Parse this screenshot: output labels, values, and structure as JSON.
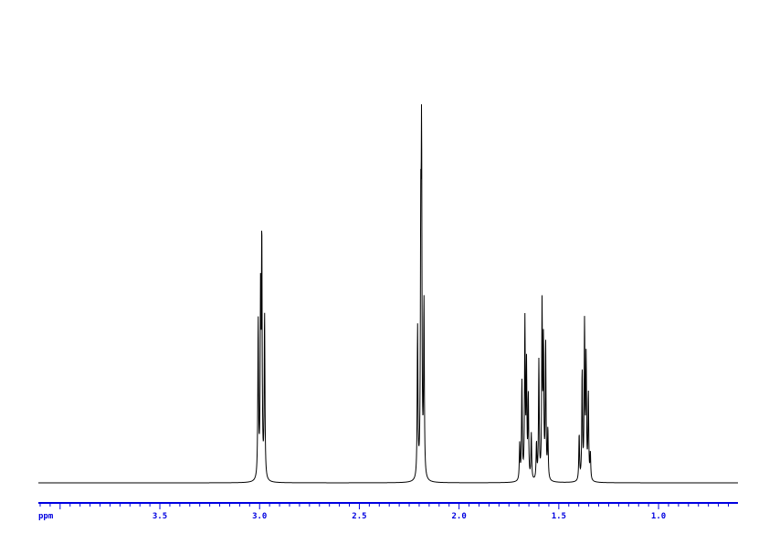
{
  "chart_data": {
    "type": "line",
    "title": "",
    "xlabel": "ppm",
    "ylabel": "",
    "xlim": [
      4.109,
      0.602
    ],
    "x_reversed": true,
    "grid": false,
    "major_tick_step": 0.5,
    "minor_tick_step": 0.05,
    "tick_labels": [
      "3.5",
      "3.0",
      "2.5",
      "2.0",
      "1.5",
      "1.0"
    ],
    "tick_values": [
      3.5,
      3.0,
      2.5,
      2.0,
      1.5,
      1.0
    ],
    "line_color": "#000000",
    "axis_color": "#0000e0",
    "peaks_ppm_relative_intensity": [
      [
        3.007,
        48
      ],
      [
        2.995,
        55
      ],
      [
        2.989,
        72
      ],
      [
        2.975,
        50
      ],
      [
        2.208,
        46
      ],
      [
        2.192,
        70
      ],
      [
        2.188,
        97
      ],
      [
        2.176,
        53
      ],
      [
        1.696,
        11
      ],
      [
        1.685,
        30
      ],
      [
        1.67,
        48
      ],
      [
        1.662,
        34
      ],
      [
        1.653,
        25
      ],
      [
        1.638,
        14
      ],
      [
        1.612,
        11
      ],
      [
        1.6,
        36
      ],
      [
        1.584,
        52
      ],
      [
        1.577,
        40
      ],
      [
        1.566,
        41
      ],
      [
        1.555,
        15
      ],
      [
        1.398,
        14
      ],
      [
        1.383,
        33
      ],
      [
        1.371,
        47
      ],
      [
        1.363,
        36
      ],
      [
        1.352,
        26
      ],
      [
        1.342,
        8
      ]
    ]
  }
}
